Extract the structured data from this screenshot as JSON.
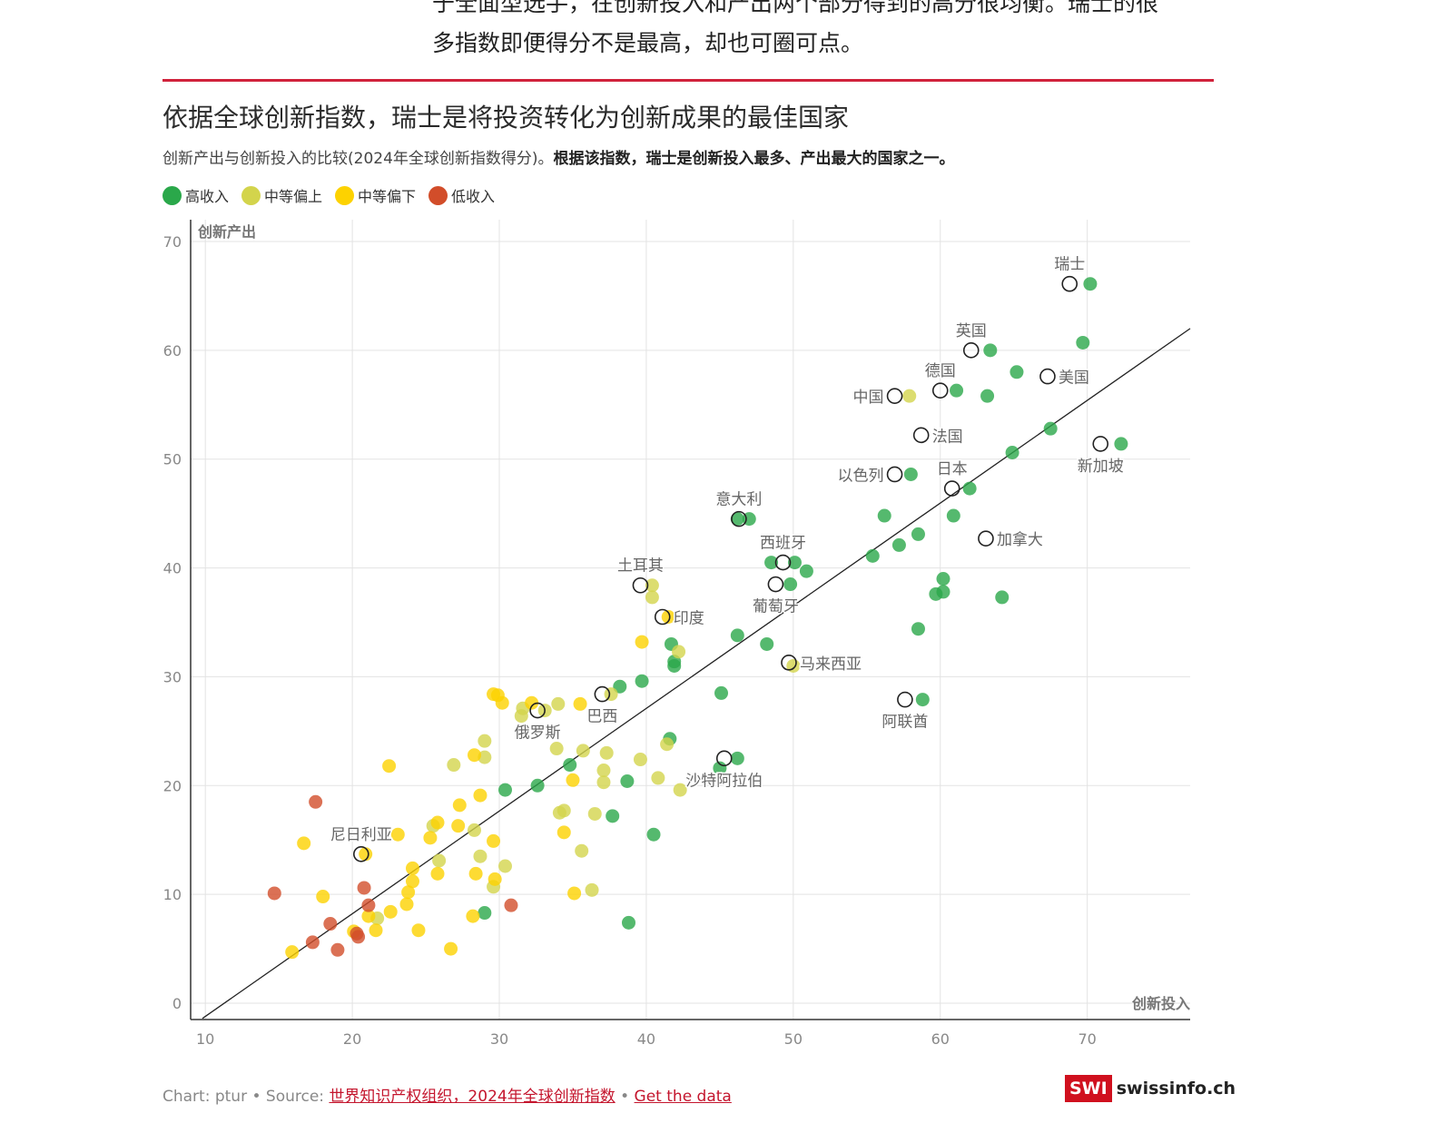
{
  "intro": {
    "line1": "于全面型选手，在创新投入和产出两个部分得到的高分很均衡。瑞士的很",
    "line2": "多指数即便得分不是最高，却也可圈可点。"
  },
  "title": "依据全球创新指数，瑞士是将投资转化为创新成果的最佳国家",
  "subtitle_plain": "创新产出与创新投入的比较(2024年全球创新指数得分)。",
  "subtitle_bold": "根据该指数，瑞士是创新投入最多、产出最大的国家之一。",
  "legend": [
    {
      "label": "高收入",
      "color": "#2aa84a"
    },
    {
      "label": "中等偏上",
      "color": "#d3d44c"
    },
    {
      "label": "中等偏下",
      "color": "#fdd200"
    },
    {
      "label": "低收入",
      "color": "#d24d2a"
    }
  ],
  "footer": {
    "prefix": "Chart: ptur • Source: ",
    "source": "世界知识产权组织，2024年全球创新指数",
    "sep": " • ",
    "data_link": "Get the data"
  },
  "logo": {
    "box": "SWI",
    "text": "swissinfo.ch"
  },
  "chart_data": {
    "type": "scatter",
    "xlabel": "创新投入",
    "ylabel": "创新产出",
    "xlim": [
      9,
      77
    ],
    "ylim": [
      -1.5,
      72
    ],
    "xticks": [
      10,
      20,
      30,
      40,
      50,
      60,
      70
    ],
    "yticks": [
      0,
      10,
      20,
      30,
      40,
      50,
      60,
      70
    ],
    "grid": true,
    "legend_position": "top-left",
    "diagonal": true,
    "colors": {
      "high": "#2aa84a",
      "upper": "#d3d44c",
      "lower": "#fdd200",
      "low": "#d24d2a"
    },
    "points": [
      {
        "x": 70.2,
        "y": 66.1,
        "c": "high"
      },
      {
        "x": 63.4,
        "y": 60.0,
        "c": "high"
      },
      {
        "x": 69.7,
        "y": 60.7,
        "c": "high"
      },
      {
        "x": 65.2,
        "y": 58.0,
        "c": "high"
      },
      {
        "x": 61.1,
        "y": 56.3,
        "c": "high"
      },
      {
        "x": 63.2,
        "y": 55.8,
        "c": "high"
      },
      {
        "x": 57.9,
        "y": 55.8,
        "c": "upper"
      },
      {
        "x": 67.5,
        "y": 52.8,
        "c": "high"
      },
      {
        "x": 72.3,
        "y": 51.4,
        "c": "high"
      },
      {
        "x": 64.9,
        "y": 50.6,
        "c": "high"
      },
      {
        "x": 58.0,
        "y": 48.6,
        "c": "high"
      },
      {
        "x": 62.0,
        "y": 47.3,
        "c": "high"
      },
      {
        "x": 56.2,
        "y": 44.8,
        "c": "high"
      },
      {
        "x": 60.9,
        "y": 44.8,
        "c": "high"
      },
      {
        "x": 58.5,
        "y": 43.1,
        "c": "high"
      },
      {
        "x": 57.2,
        "y": 42.1,
        "c": "high"
      },
      {
        "x": 55.4,
        "y": 41.1,
        "c": "high"
      },
      {
        "x": 47.0,
        "y": 44.5,
        "c": "high"
      },
      {
        "x": 46.2,
        "y": 44.5,
        "c": "high"
      },
      {
        "x": 50.1,
        "y": 40.5,
        "c": "high"
      },
      {
        "x": 48.5,
        "y": 40.5,
        "c": "high"
      },
      {
        "x": 50.9,
        "y": 39.7,
        "c": "high"
      },
      {
        "x": 49.8,
        "y": 38.5,
        "c": "high"
      },
      {
        "x": 60.2,
        "y": 39.0,
        "c": "high"
      },
      {
        "x": 60.2,
        "y": 37.8,
        "c": "high"
      },
      {
        "x": 59.7,
        "y": 37.6,
        "c": "high"
      },
      {
        "x": 64.2,
        "y": 37.3,
        "c": "high"
      },
      {
        "x": 58.5,
        "y": 34.4,
        "c": "high"
      },
      {
        "x": 46.2,
        "y": 33.8,
        "c": "high"
      },
      {
        "x": 48.2,
        "y": 33.0,
        "c": "high"
      },
      {
        "x": 41.7,
        "y": 33.0,
        "c": "high"
      },
      {
        "x": 41.9,
        "y": 31.4,
        "c": "high"
      },
      {
        "x": 41.9,
        "y": 31.0,
        "c": "high"
      },
      {
        "x": 50.0,
        "y": 31.0,
        "c": "upper"
      },
      {
        "x": 39.7,
        "y": 29.6,
        "c": "high"
      },
      {
        "x": 38.2,
        "y": 29.1,
        "c": "high"
      },
      {
        "x": 45.1,
        "y": 28.5,
        "c": "high"
      },
      {
        "x": 58.8,
        "y": 27.9,
        "c": "high"
      },
      {
        "x": 41.6,
        "y": 24.3,
        "c": "high"
      },
      {
        "x": 46.2,
        "y": 22.5,
        "c": "high"
      },
      {
        "x": 45.0,
        "y": 21.6,
        "c": "high"
      },
      {
        "x": 34.8,
        "y": 21.9,
        "c": "high"
      },
      {
        "x": 38.7,
        "y": 20.4,
        "c": "high"
      },
      {
        "x": 32.6,
        "y": 20.0,
        "c": "high"
      },
      {
        "x": 30.4,
        "y": 19.6,
        "c": "high"
      },
      {
        "x": 37.7,
        "y": 17.2,
        "c": "high"
      },
      {
        "x": 40.5,
        "y": 15.5,
        "c": "high"
      },
      {
        "x": 29.0,
        "y": 8.3,
        "c": "high"
      },
      {
        "x": 38.8,
        "y": 7.4,
        "c": "high"
      },
      {
        "x": 40.4,
        "y": 38.4,
        "c": "upper"
      },
      {
        "x": 40.4,
        "y": 37.3,
        "c": "upper"
      },
      {
        "x": 42.2,
        "y": 32.3,
        "c": "upper"
      },
      {
        "x": 37.6,
        "y": 28.4,
        "c": "upper"
      },
      {
        "x": 34.0,
        "y": 27.5,
        "c": "upper"
      },
      {
        "x": 33.1,
        "y": 26.9,
        "c": "upper"
      },
      {
        "x": 31.5,
        "y": 26.4,
        "c": "upper"
      },
      {
        "x": 31.6,
        "y": 27.1,
        "c": "upper"
      },
      {
        "x": 29.0,
        "y": 24.1,
        "c": "upper"
      },
      {
        "x": 29.0,
        "y": 22.6,
        "c": "upper"
      },
      {
        "x": 26.9,
        "y": 21.9,
        "c": "upper"
      },
      {
        "x": 41.4,
        "y": 23.8,
        "c": "upper"
      },
      {
        "x": 37.3,
        "y": 23.0,
        "c": "upper"
      },
      {
        "x": 35.7,
        "y": 23.2,
        "c": "upper"
      },
      {
        "x": 33.9,
        "y": 23.4,
        "c": "upper"
      },
      {
        "x": 39.6,
        "y": 22.4,
        "c": "upper"
      },
      {
        "x": 37.1,
        "y": 21.4,
        "c": "upper"
      },
      {
        "x": 40.8,
        "y": 20.7,
        "c": "upper"
      },
      {
        "x": 37.1,
        "y": 20.3,
        "c": "upper"
      },
      {
        "x": 42.3,
        "y": 19.6,
        "c": "upper"
      },
      {
        "x": 34.1,
        "y": 17.5,
        "c": "upper"
      },
      {
        "x": 34.4,
        "y": 17.7,
        "c": "upper"
      },
      {
        "x": 36.5,
        "y": 17.4,
        "c": "upper"
      },
      {
        "x": 25.5,
        "y": 16.3,
        "c": "upper"
      },
      {
        "x": 28.3,
        "y": 15.9,
        "c": "upper"
      },
      {
        "x": 35.6,
        "y": 14.0,
        "c": "upper"
      },
      {
        "x": 28.7,
        "y": 13.5,
        "c": "upper"
      },
      {
        "x": 25.9,
        "y": 13.1,
        "c": "upper"
      },
      {
        "x": 30.4,
        "y": 12.6,
        "c": "upper"
      },
      {
        "x": 29.6,
        "y": 10.7,
        "c": "upper"
      },
      {
        "x": 36.3,
        "y": 10.4,
        "c": "upper"
      },
      {
        "x": 21.7,
        "y": 7.8,
        "c": "upper"
      },
      {
        "x": 29.6,
        "y": 28.4,
        "c": "lower"
      },
      {
        "x": 29.9,
        "y": 28.3,
        "c": "lower"
      },
      {
        "x": 30.2,
        "y": 27.6,
        "c": "lower"
      },
      {
        "x": 32.2,
        "y": 27.6,
        "c": "lower"
      },
      {
        "x": 35.5,
        "y": 27.5,
        "c": "lower"
      },
      {
        "x": 41.5,
        "y": 35.5,
        "c": "lower"
      },
      {
        "x": 39.7,
        "y": 33.2,
        "c": "lower"
      },
      {
        "x": 28.3,
        "y": 22.8,
        "c": "lower"
      },
      {
        "x": 22.5,
        "y": 21.8,
        "c": "lower"
      },
      {
        "x": 35.0,
        "y": 20.5,
        "c": "lower"
      },
      {
        "x": 28.7,
        "y": 19.1,
        "c": "lower"
      },
      {
        "x": 27.3,
        "y": 18.2,
        "c": "lower"
      },
      {
        "x": 25.8,
        "y": 16.6,
        "c": "lower"
      },
      {
        "x": 27.2,
        "y": 16.3,
        "c": "lower"
      },
      {
        "x": 34.4,
        "y": 15.7,
        "c": "lower"
      },
      {
        "x": 23.1,
        "y": 15.5,
        "c": "lower"
      },
      {
        "x": 25.3,
        "y": 15.2,
        "c": "lower"
      },
      {
        "x": 29.6,
        "y": 14.9,
        "c": "lower"
      },
      {
        "x": 20.9,
        "y": 13.7,
        "c": "lower"
      },
      {
        "x": 24.1,
        "y": 12.4,
        "c": "lower"
      },
      {
        "x": 25.8,
        "y": 11.9,
        "c": "lower"
      },
      {
        "x": 28.4,
        "y": 11.9,
        "c": "lower"
      },
      {
        "x": 29.7,
        "y": 11.4,
        "c": "lower"
      },
      {
        "x": 24.1,
        "y": 11.2,
        "c": "lower"
      },
      {
        "x": 23.8,
        "y": 10.2,
        "c": "lower"
      },
      {
        "x": 35.1,
        "y": 10.1,
        "c": "lower"
      },
      {
        "x": 18.0,
        "y": 9.8,
        "c": "lower"
      },
      {
        "x": 23.7,
        "y": 9.1,
        "c": "lower"
      },
      {
        "x": 22.6,
        "y": 8.4,
        "c": "lower"
      },
      {
        "x": 28.2,
        "y": 8.0,
        "c": "lower"
      },
      {
        "x": 21.1,
        "y": 8.0,
        "c": "lower"
      },
      {
        "x": 21.6,
        "y": 6.7,
        "c": "lower"
      },
      {
        "x": 24.5,
        "y": 6.7,
        "c": "lower"
      },
      {
        "x": 20.1,
        "y": 6.6,
        "c": "lower"
      },
      {
        "x": 16.7,
        "y": 14.7,
        "c": "lower"
      },
      {
        "x": 26.7,
        "y": 5.0,
        "c": "lower"
      },
      {
        "x": 15.9,
        "y": 4.7,
        "c": "lower"
      },
      {
        "x": 17.5,
        "y": 18.5,
        "c": "low"
      },
      {
        "x": 20.8,
        "y": 10.6,
        "c": "low"
      },
      {
        "x": 14.7,
        "y": 10.1,
        "c": "low"
      },
      {
        "x": 21.1,
        "y": 9.0,
        "c": "low"
      },
      {
        "x": 30.8,
        "y": 9.0,
        "c": "low"
      },
      {
        "x": 18.5,
        "y": 7.3,
        "c": "low"
      },
      {
        "x": 20.3,
        "y": 6.4,
        "c": "low"
      },
      {
        "x": 20.4,
        "y": 6.1,
        "c": "low"
      },
      {
        "x": 17.3,
        "y": 5.6,
        "c": "low"
      },
      {
        "x": 19.0,
        "y": 4.9,
        "c": "low"
      }
    ],
    "annotations": [
      {
        "label": "瑞士",
        "x": 68.8,
        "y": 66.1,
        "pos": "top"
      },
      {
        "label": "英国",
        "x": 62.1,
        "y": 60.0,
        "pos": "top"
      },
      {
        "label": "美国",
        "x": 67.3,
        "y": 57.6,
        "pos": "right"
      },
      {
        "label": "德国",
        "x": 60.0,
        "y": 56.3,
        "pos": "top"
      },
      {
        "label": "中国",
        "x": 56.9,
        "y": 55.8,
        "pos": "left"
      },
      {
        "label": "法国",
        "x": 58.7,
        "y": 52.2,
        "pos": "right"
      },
      {
        "label": "新加坡",
        "x": 70.9,
        "y": 51.4,
        "pos": "bottom"
      },
      {
        "label": "以色列",
        "x": 56.9,
        "y": 48.6,
        "pos": "left"
      },
      {
        "label": "日本",
        "x": 60.8,
        "y": 47.3,
        "pos": "top"
      },
      {
        "label": "意大利",
        "x": 46.3,
        "y": 44.5,
        "pos": "top"
      },
      {
        "label": "加拿大",
        "x": 63.1,
        "y": 42.7,
        "pos": "right"
      },
      {
        "label": "西班牙",
        "x": 49.3,
        "y": 40.5,
        "pos": "top"
      },
      {
        "label": "葡萄牙",
        "x": 48.8,
        "y": 38.5,
        "pos": "bottom"
      },
      {
        "label": "土耳其",
        "x": 39.6,
        "y": 38.4,
        "pos": "top"
      },
      {
        "label": "印度",
        "x": 41.1,
        "y": 35.5,
        "pos": "right"
      },
      {
        "label": "马来西亚",
        "x": 49.7,
        "y": 31.3,
        "pos": "right"
      },
      {
        "label": "巴西",
        "x": 37.0,
        "y": 28.4,
        "pos": "bottom"
      },
      {
        "label": "阿联酋",
        "x": 57.6,
        "y": 27.9,
        "pos": "bottom"
      },
      {
        "label": "俄罗斯",
        "x": 32.6,
        "y": 26.9,
        "pos": "bottom"
      },
      {
        "label": "沙特阿拉伯",
        "x": 45.3,
        "y": 22.5,
        "pos": "bottom"
      },
      {
        "label": "尼日利亚",
        "x": 20.6,
        "y": 13.7,
        "pos": "top"
      }
    ]
  }
}
